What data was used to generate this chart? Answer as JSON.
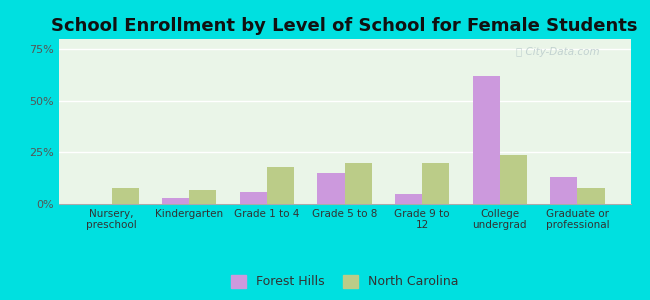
{
  "title": "School Enrollment by Level of School for Female Students",
  "categories": [
    "Nursery,\npreschool",
    "Kindergarten",
    "Grade 1 to 4",
    "Grade 5 to 8",
    "Grade 9 to\n12",
    "College\nundergrad",
    "Graduate or\nprofessional"
  ],
  "forest_hills": [
    0.0,
    3.0,
    6.0,
    15.0,
    5.0,
    62.0,
    13.0
  ],
  "north_carolina": [
    8.0,
    7.0,
    18.0,
    20.0,
    20.0,
    24.0,
    8.0
  ],
  "forest_hills_color": "#cc99dd",
  "north_carolina_color": "#bbcc88",
  "ylim": [
    0,
    80
  ],
  "yticks": [
    0,
    25,
    50,
    75
  ],
  "ytick_labels": [
    "0%",
    "25%",
    "50%",
    "75%"
  ],
  "bg_color": "#00e0e0",
  "plot_bg_color": "#eaf5e8",
  "title_fontsize": 13,
  "legend_labels": [
    "Forest Hills",
    "North Carolina"
  ],
  "bar_width": 0.35
}
